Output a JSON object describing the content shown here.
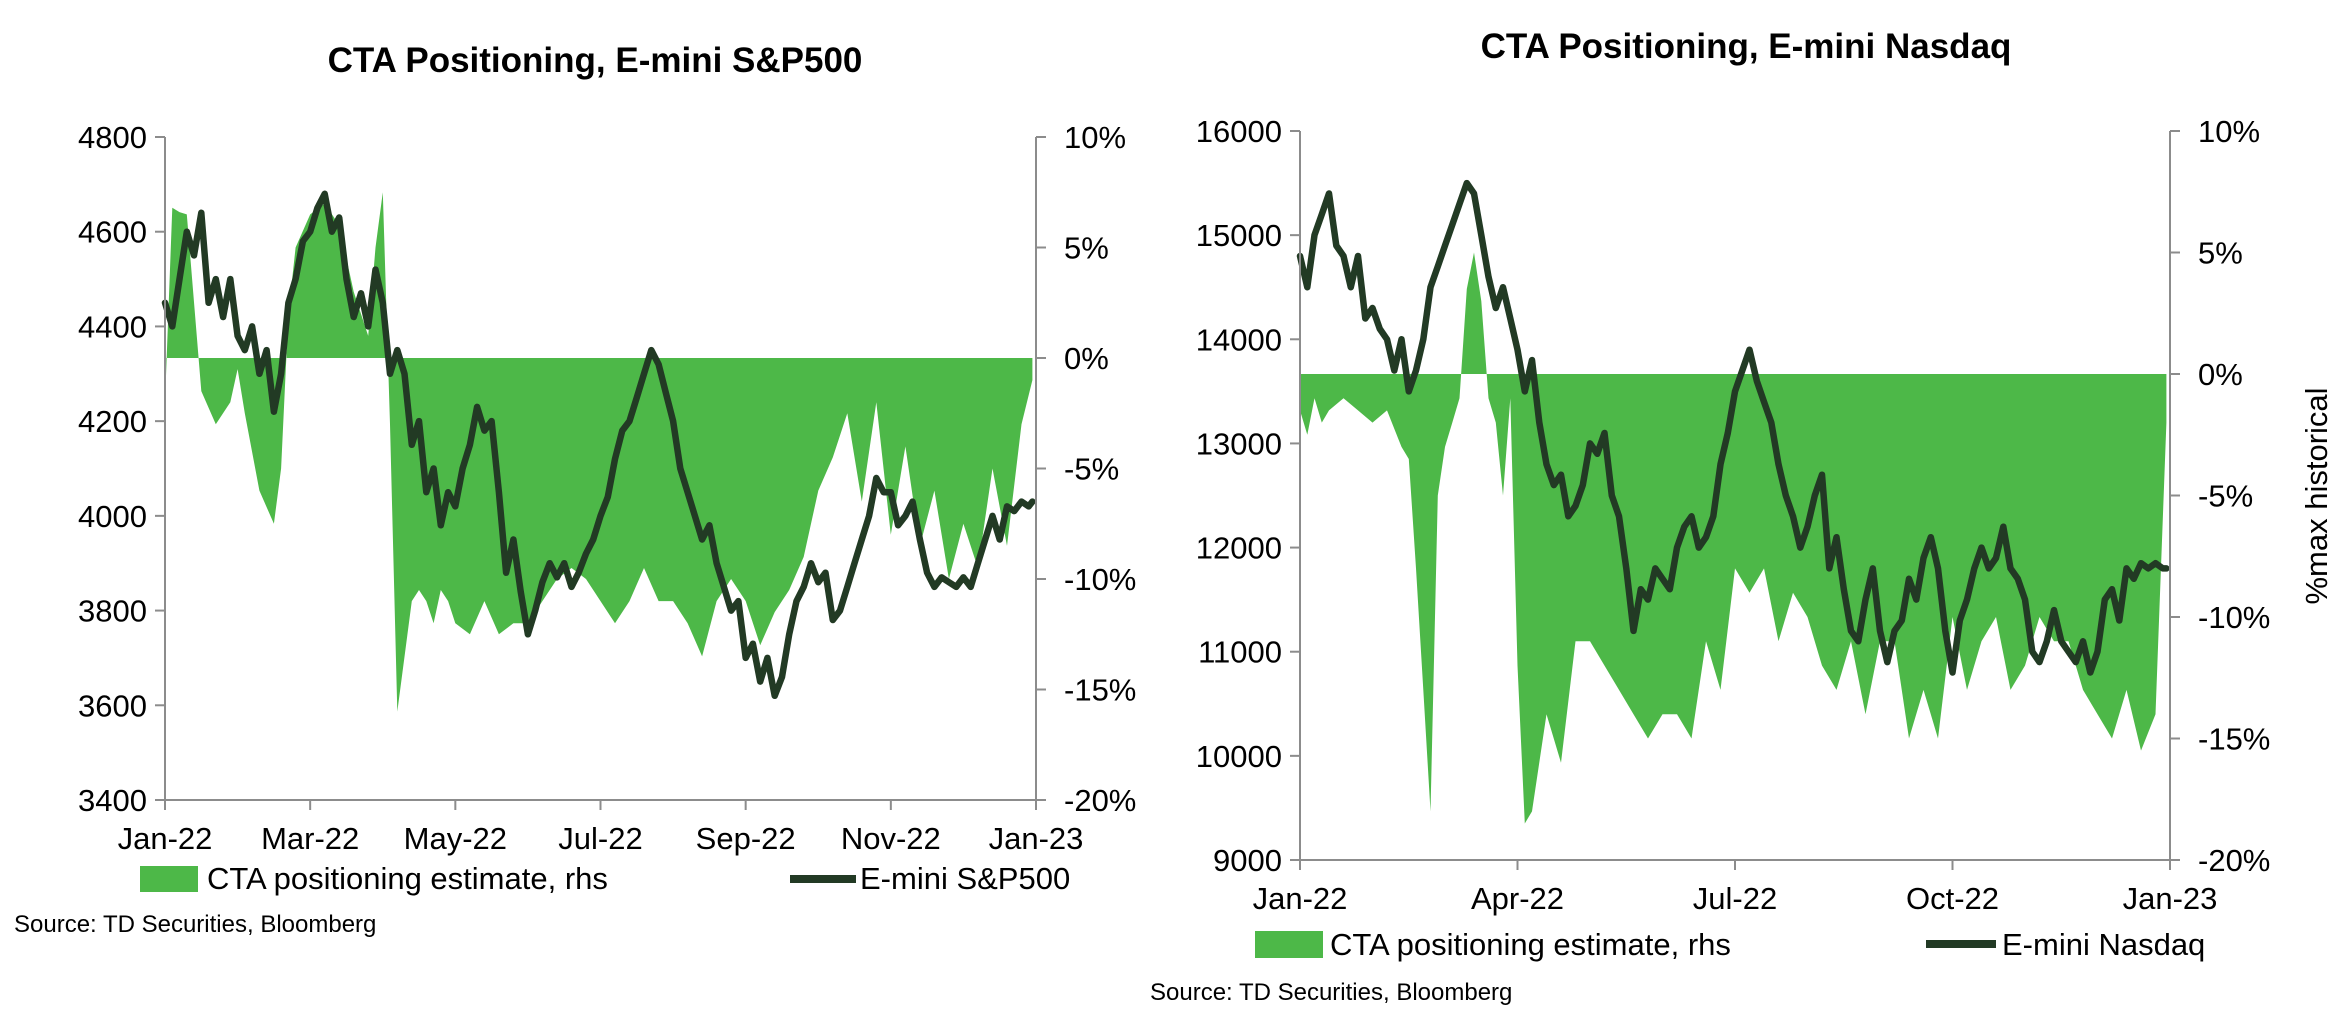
{
  "colors": {
    "area": "#4db848",
    "line": "#223a24",
    "axis": "#8c8c8c"
  },
  "chart_data": [
    {
      "type": "area+line",
      "title": "CTA Positioning, E-mini S&P500",
      "source": "Source: TD Securities, Bloomberg",
      "ylabel_right": "",
      "left_axis": {
        "lim": [
          3400,
          4800
        ],
        "ticks": [
          "3400",
          "3600",
          "3800",
          "4000",
          "4200",
          "4400",
          "4600",
          "4800"
        ]
      },
      "right_axis": {
        "lim": [
          -20,
          10
        ],
        "ticks": [
          "-20%",
          "-15%",
          "-10%",
          "-5%",
          "0%",
          "5%",
          "10%"
        ]
      },
      "x_axis": {
        "lim": [
          0,
          12
        ],
        "ticks": [
          {
            "t": 0,
            "label": "Jan-22"
          },
          {
            "t": 2,
            "label": "Mar-22"
          },
          {
            "t": 4,
            "label": "May-22"
          },
          {
            "t": 6,
            "label": "Jul-22"
          },
          {
            "t": 8,
            "label": "Sep-22"
          },
          {
            "t": 10,
            "label": "Nov-22"
          },
          {
            "t": 12,
            "label": "Jan-23"
          }
        ]
      },
      "legend": {
        "area_label": "CTA positioning estimate, rhs",
        "line_label": "E-mini S&P500",
        "position": "bottom"
      },
      "series": [
        {
          "name": "CTA positioning estimate, rhs",
          "axis": "right",
          "kind": "area",
          "t": [
            0,
            0.1,
            0.2,
            0.3,
            0.5,
            0.7,
            0.9,
            1.0,
            1.1,
            1.3,
            1.5,
            1.6,
            1.7,
            1.8,
            2.0,
            2.2,
            2.4,
            2.6,
            2.8,
            2.9,
            3.0,
            3.1,
            3.2,
            3.4,
            3.5,
            3.6,
            3.7,
            3.8,
            3.9,
            4.0,
            4.2,
            4.4,
            4.6,
            4.8,
            5.0,
            5.2,
            5.4,
            5.6,
            5.8,
            6.0,
            6.2,
            6.4,
            6.6,
            6.8,
            7.0,
            7.2,
            7.4,
            7.6,
            7.8,
            8.0,
            8.2,
            8.4,
            8.6,
            8.8,
            9.0,
            9.2,
            9.4,
            9.6,
            9.8,
            10.0,
            10.2,
            10.4,
            10.6,
            10.8,
            11.0,
            11.2,
            11.4,
            11.6,
            11.8,
            11.95
          ],
          "values": [
            -2,
            6.8,
            6.6,
            6.5,
            -1.5,
            -3,
            -2,
            -0.5,
            -2.5,
            -6,
            -7.5,
            -5,
            2,
            5,
            6.5,
            7,
            6,
            3,
            1,
            5,
            7.5,
            -3,
            -16,
            -11,
            -10.5,
            -11,
            -12,
            -10.5,
            -11,
            -12,
            -12.5,
            -11,
            -12.5,
            -12,
            -12,
            -11,
            -10,
            -9.5,
            -10,
            -11,
            -12,
            -11,
            -9.5,
            -11,
            -11,
            -12,
            -13.5,
            -11,
            -10,
            -11,
            -13,
            -11.5,
            -10.5,
            -9,
            -6,
            -4.5,
            -2.5,
            -6.5,
            -2,
            -8,
            -4,
            -8.5,
            -6,
            -10,
            -7.5,
            -9.5,
            -5,
            -8.5,
            -3,
            -1
          ]
        },
        {
          "name": "E-mini S&P500",
          "axis": "left",
          "kind": "line",
          "t": [
            0,
            0.1,
            0.2,
            0.3,
            0.4,
            0.5,
            0.6,
            0.7,
            0.8,
            0.9,
            1.0,
            1.1,
            1.2,
            1.3,
            1.4,
            1.5,
            1.6,
            1.7,
            1.8,
            1.9,
            2.0,
            2.1,
            2.2,
            2.3,
            2.4,
            2.5,
            2.6,
            2.7,
            2.8,
            2.9,
            3.0,
            3.1,
            3.2,
            3.3,
            3.4,
            3.5,
            3.6,
            3.7,
            3.8,
            3.9,
            4.0,
            4.1,
            4.2,
            4.3,
            4.4,
            4.5,
            4.6,
            4.7,
            4.8,
            4.9,
            5.0,
            5.1,
            5.2,
            5.3,
            5.4,
            5.5,
            5.6,
            5.7,
            5.8,
            5.9,
            6.0,
            6.1,
            6.2,
            6.3,
            6.4,
            6.5,
            6.6,
            6.7,
            6.8,
            6.9,
            7.0,
            7.1,
            7.2,
            7.3,
            7.4,
            7.5,
            7.6,
            7.7,
            7.8,
            7.9,
            8.0,
            8.1,
            8.2,
            8.3,
            8.4,
            8.5,
            8.6,
            8.7,
            8.8,
            8.9,
            9.0,
            9.1,
            9.2,
            9.3,
            9.4,
            9.5,
            9.6,
            9.7,
            9.8,
            9.9,
            10.0,
            10.1,
            10.2,
            10.3,
            10.4,
            10.5,
            10.6,
            10.7,
            10.8,
            10.9,
            11.0,
            11.1,
            11.2,
            11.3,
            11.4,
            11.5,
            11.6,
            11.7,
            11.8,
            11.9,
            11.95
          ],
          "values": [
            4450,
            4400,
            4500,
            4600,
            4550,
            4640,
            4450,
            4500,
            4420,
            4500,
            4380,
            4350,
            4400,
            4300,
            4350,
            4220,
            4300,
            4450,
            4500,
            4580,
            4600,
            4650,
            4680,
            4600,
            4630,
            4500,
            4420,
            4470,
            4400,
            4520,
            4450,
            4300,
            4350,
            4300,
            4150,
            4200,
            4050,
            4100,
            3980,
            4050,
            4020,
            4100,
            4150,
            4230,
            4180,
            4200,
            4050,
            3880,
            3950,
            3840,
            3750,
            3800,
            3860,
            3900,
            3870,
            3900,
            3850,
            3880,
            3920,
            3950,
            4000,
            4040,
            4120,
            4180,
            4200,
            4250,
            4300,
            4350,
            4320,
            4260,
            4200,
            4100,
            4050,
            4000,
            3950,
            3980,
            3900,
            3850,
            3800,
            3820,
            3700,
            3730,
            3650,
            3700,
            3620,
            3660,
            3750,
            3820,
            3850,
            3900,
            3860,
            3880,
            3780,
            3800,
            3850,
            3900,
            3950,
            4000,
            4080,
            4050,
            4050,
            3980,
            4000,
            4030,
            3950,
            3880,
            3850,
            3870,
            3860,
            3850,
            3870,
            3850,
            3900,
            3950,
            4000,
            3950,
            4020,
            4010,
            4030,
            4020,
            4030
          ]
        }
      ]
    },
    {
      "type": "area+line",
      "title": "CTA Positioning, E-mini Nasdaq",
      "source": "Source: TD Securities, Bloomberg",
      "ylabel_right": "%max historical",
      "left_axis": {
        "lim": [
          9000,
          16000
        ],
        "ticks": [
          "9000",
          "10000",
          "11000",
          "12000",
          "13000",
          "14000",
          "15000",
          "16000"
        ]
      },
      "right_axis": {
        "lim": [
          -20,
          10
        ],
        "ticks": [
          "-20%",
          "-15%",
          "-10%",
          "-5%",
          "0%",
          "5%",
          "10%"
        ]
      },
      "x_axis": {
        "lim": [
          0,
          12
        ],
        "ticks": [
          {
            "t": 0,
            "label": "Jan-22"
          },
          {
            "t": 3,
            "label": "Apr-22"
          },
          {
            "t": 6,
            "label": "Jul-22"
          },
          {
            "t": 9,
            "label": "Oct-22"
          },
          {
            "t": 12,
            "label": "Jan-23"
          }
        ]
      },
      "legend": {
        "area_label": "CTA positioning estimate, rhs",
        "line_label": "E-mini Nasdaq",
        "position": "bottom"
      },
      "series": [
        {
          "name": "CTA positioning estimate, rhs",
          "axis": "right",
          "kind": "area",
          "t": [
            0,
            0.1,
            0.2,
            0.3,
            0.4,
            0.6,
            0.8,
            1.0,
            1.2,
            1.4,
            1.5,
            1.6,
            1.7,
            1.8,
            1.9,
            2.0,
            2.1,
            2.2,
            2.3,
            2.4,
            2.5,
            2.6,
            2.7,
            2.8,
            2.9,
            3.0,
            3.1,
            3.2,
            3.4,
            3.6,
            3.8,
            4.0,
            4.2,
            4.4,
            4.6,
            4.8,
            5.0,
            5.2,
            5.4,
            5.6,
            5.8,
            6.0,
            6.2,
            6.4,
            6.6,
            6.8,
            7.0,
            7.2,
            7.4,
            7.6,
            7.8,
            8.0,
            8.2,
            8.4,
            8.6,
            8.8,
            9.0,
            9.2,
            9.4,
            9.6,
            9.8,
            10.0,
            10.2,
            10.4,
            10.6,
            10.8,
            11.0,
            11.2,
            11.4,
            11.6,
            11.8,
            11.95
          ],
          "values": [
            -1.5,
            -2.5,
            -1,
            -2,
            -1.5,
            -1,
            -1.5,
            -2,
            -1.5,
            -3,
            -3.5,
            -8,
            -13,
            -18,
            -5,
            -3,
            -2,
            -1,
            3.5,
            5,
            3,
            -1,
            -2,
            -5,
            -1,
            -12,
            -18.5,
            -18,
            -14,
            -16,
            -11,
            -11,
            -12,
            -13,
            -14,
            -15,
            -14,
            -14,
            -15,
            -11,
            -13,
            -8,
            -9,
            -8,
            -11,
            -9,
            -10,
            -12,
            -13,
            -11,
            -14,
            -11,
            -11,
            -15,
            -13,
            -15,
            -10,
            -13,
            -11,
            -10,
            -13,
            -12,
            -10,
            -11,
            -11,
            -13,
            -14,
            -15,
            -13,
            -15.5,
            -14,
            -2
          ]
        },
        {
          "name": "E-mini Nasdaq",
          "axis": "left",
          "kind": "line",
          "t": [
            0,
            0.1,
            0.2,
            0.3,
            0.4,
            0.5,
            0.6,
            0.7,
            0.8,
            0.9,
            1.0,
            1.1,
            1.2,
            1.3,
            1.4,
            1.5,
            1.6,
            1.7,
            1.8,
            1.9,
            2.0,
            2.1,
            2.2,
            2.3,
            2.4,
            2.5,
            2.6,
            2.7,
            2.8,
            2.9,
            3.0,
            3.1,
            3.2,
            3.3,
            3.4,
            3.5,
            3.6,
            3.7,
            3.8,
            3.9,
            4.0,
            4.1,
            4.2,
            4.3,
            4.4,
            4.5,
            4.6,
            4.7,
            4.8,
            4.9,
            5.0,
            5.1,
            5.2,
            5.3,
            5.4,
            5.5,
            5.6,
            5.7,
            5.8,
            5.9,
            6.0,
            6.1,
            6.2,
            6.3,
            6.4,
            6.5,
            6.6,
            6.7,
            6.8,
            6.9,
            7.0,
            7.1,
            7.2,
            7.3,
            7.4,
            7.5,
            7.6,
            7.7,
            7.8,
            7.9,
            8.0,
            8.1,
            8.2,
            8.3,
            8.4,
            8.5,
            8.6,
            8.7,
            8.8,
            8.9,
            9.0,
            9.1,
            9.2,
            9.3,
            9.4,
            9.5,
            9.6,
            9.7,
            9.8,
            9.9,
            10.0,
            10.1,
            10.2,
            10.3,
            10.4,
            10.5,
            10.6,
            10.7,
            10.8,
            10.9,
            11.0,
            11.1,
            11.2,
            11.3,
            11.4,
            11.5,
            11.6,
            11.7,
            11.8,
            11.9,
            11.95
          ],
          "values": [
            14800,
            14500,
            15000,
            15200,
            15400,
            14900,
            14800,
            14500,
            14800,
            14200,
            14300,
            14100,
            14000,
            13700,
            14000,
            13500,
            13700,
            14000,
            14500,
            14700,
            14900,
            15100,
            15300,
            15500,
            15400,
            15000,
            14600,
            14300,
            14500,
            14200,
            13900,
            13500,
            13800,
            13200,
            12800,
            12600,
            12700,
            12300,
            12400,
            12600,
            13000,
            12900,
            13100,
            12500,
            12300,
            11800,
            11200,
            11600,
            11500,
            11800,
            11700,
            11600,
            12000,
            12200,
            12300,
            12000,
            12100,
            12300,
            12800,
            13100,
            13500,
            13700,
            13900,
            13600,
            13400,
            13200,
            12800,
            12500,
            12300,
            12000,
            12200,
            12500,
            12700,
            11800,
            12100,
            11600,
            11200,
            11100,
            11500,
            11800,
            11200,
            10900,
            11200,
            11300,
            11700,
            11500,
            11900,
            12100,
            11800,
            11200,
            10800,
            11300,
            11500,
            11800,
            12000,
            11800,
            11900,
            12200,
            11800,
            11700,
            11500,
            11000,
            10900,
            11100,
            11400,
            11100,
            11000,
            10900,
            11100,
            10800,
            11000,
            11500,
            11600,
            11300,
            11800,
            11700,
            11850,
            11800,
            11850,
            11800,
            11800
          ]
        }
      ]
    }
  ]
}
